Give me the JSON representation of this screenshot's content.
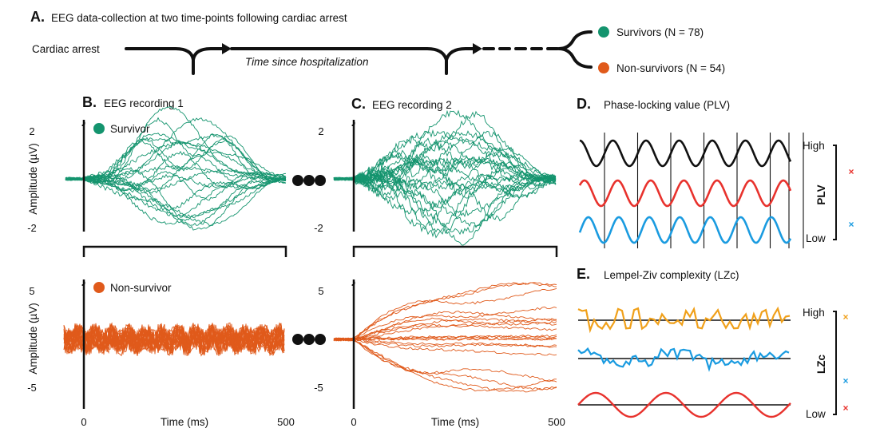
{
  "panel_a": {
    "letter": "A.",
    "title": "EEG data-collection at two time-points following cardiac arrest",
    "start_label": "Cardiac arrest",
    "timeline_label": "Time since hospitalization",
    "outcomes": [
      {
        "label": "Survivors (N = 78)",
        "color": "#14946e"
      },
      {
        "label": "Non-survivors (N = 54)",
        "color": "#e05a1b"
      }
    ]
  },
  "panel_b": {
    "letter": "B.",
    "title": "EEG recording 1"
  },
  "panel_c": {
    "letter": "C.",
    "title": "EEG recording 2"
  },
  "panel_d": {
    "letter": "D.",
    "title": "Phase-locking value (PLV)",
    "high": "High",
    "low": "Low",
    "axis": "PLV"
  },
  "panel_e": {
    "letter": "E.",
    "title": "Lempel-Ziv complexity (LZc)",
    "high": "High",
    "low": "Low",
    "axis": "LZc"
  },
  "axes": {
    "ylabel": "Amplitude (µV)",
    "xlabel": "Time (ms)",
    "x_ticks": [
      "0",
      "500"
    ],
    "survivor_y_ticks": [
      "2",
      "-2"
    ],
    "nonsurvivor_y_ticks": [
      "5",
      "-5"
    ],
    "survivor_label": "Survivor",
    "nonsurvivor_label": "Non-survivor",
    "marker_note": "♪"
  },
  "colors": {
    "survivor": "#14946e",
    "nonsurvivor": "#e05a1b",
    "plv_high": "#111111",
    "plv_mid": "#e8322d",
    "plv_low": "#1a9be0",
    "lzc_high": "#f0a01a",
    "lzc_mid": "#1a9be0",
    "lzc_low": "#e8322d",
    "marker_red": "#e8322d",
    "marker_blue": "#1a9be0",
    "marker_orange": "#f0a01a"
  },
  "ellipsis": "●●●"
}
